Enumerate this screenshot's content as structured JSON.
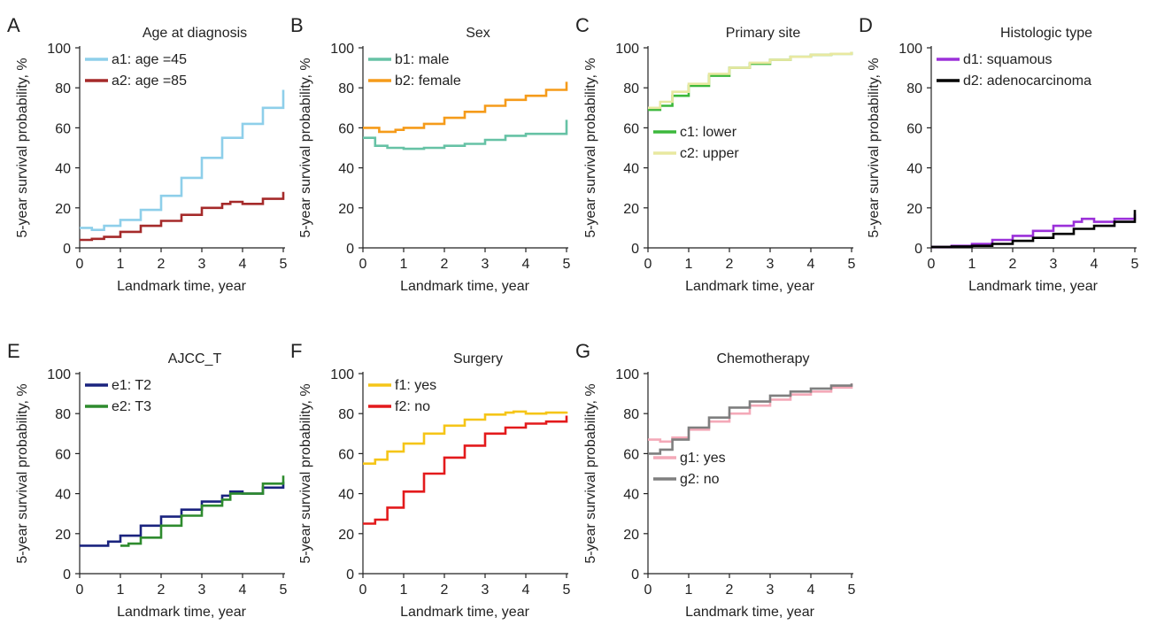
{
  "chart_data": [
    {
      "type": "line",
      "panel": "A",
      "title": "Age at diagnosis",
      "xlabel": "Landmark time, year",
      "ylabel": "5-year survival probability, %",
      "xlim": [
        0,
        5
      ],
      "ylim": [
        0,
        100
      ],
      "xticks": [
        "0",
        "1",
        "2",
        "3",
        "4",
        "5"
      ],
      "yticks": [
        "0",
        "20",
        "40",
        "60",
        "80",
        "100"
      ],
      "legend_position": "top-left",
      "series": [
        {
          "name": "a1: age =45",
          "color": "#8ecfea",
          "x": [
            0,
            0.3,
            0.6,
            1.0,
            1.5,
            2.0,
            2.5,
            3.0,
            3.5,
            4.0,
            4.5,
            5.0
          ],
          "y": [
            10,
            9,
            11,
            14,
            19,
            26,
            35,
            45,
            55,
            62,
            70,
            79
          ]
        },
        {
          "name": "a2: age =85",
          "color": "#a52a2a",
          "x": [
            0,
            0.3,
            0.6,
            1.0,
            1.5,
            2.0,
            2.5,
            3.0,
            3.5,
            3.7,
            4.0,
            4.5,
            5.0
          ],
          "y": [
            4,
            4.5,
            5.5,
            8,
            11,
            13.5,
            16.5,
            20,
            22,
            23,
            22,
            24.5,
            28
          ]
        }
      ]
    },
    {
      "type": "line",
      "panel": "B",
      "title": "Sex",
      "xlabel": "Landmark time, year",
      "ylabel": "5-year survival probability, %",
      "xlim": [
        0,
        5
      ],
      "ylim": [
        0,
        100
      ],
      "xticks": [
        "0",
        "1",
        "2",
        "3",
        "4",
        "5"
      ],
      "yticks": [
        "0",
        "20",
        "40",
        "60",
        "80",
        "100"
      ],
      "legend_position": "top-left",
      "series": [
        {
          "name": "b1: male",
          "color": "#66c2a5",
          "x": [
            0,
            0.3,
            0.6,
            1.0,
            1.5,
            2.0,
            2.5,
            3.0,
            3.5,
            4.0,
            4.5,
            5.0
          ],
          "y": [
            55,
            51,
            50,
            49.5,
            50,
            51,
            52,
            54,
            56,
            57,
            57,
            64
          ]
        },
        {
          "name": "b2: female",
          "color": "#f59b1a",
          "x": [
            0,
            0.4,
            0.8,
            1.0,
            1.5,
            2.0,
            2.5,
            3.0,
            3.5,
            4.0,
            4.5,
            5.0
          ],
          "y": [
            60,
            58,
            59,
            60,
            62,
            65,
            68,
            71,
            74,
            76,
            79,
            83
          ]
        }
      ]
    },
    {
      "type": "line",
      "panel": "C",
      "title": "Primary site",
      "xlabel": "Landmark time, year",
      "ylabel": "5-year survival probability, %",
      "xlim": [
        0,
        5
      ],
      "ylim": [
        0,
        100
      ],
      "xticks": [
        "0",
        "1",
        "2",
        "3",
        "4",
        "5"
      ],
      "yticks": [
        "0",
        "20",
        "40",
        "60",
        "80",
        "100"
      ],
      "legend_position": "center-left",
      "series": [
        {
          "name": "c1: lower",
          "color": "#3cb83c",
          "x": [
            0,
            0.3,
            0.6,
            1.0,
            1.5,
            2.0,
            2.5,
            3.0,
            3.5,
            4.0,
            4.5,
            5.0
          ],
          "y": [
            69,
            71,
            76,
            81,
            86,
            90,
            92,
            94,
            95.5,
            96.5,
            97,
            98
          ]
        },
        {
          "name": "c2: upper",
          "color": "#e8e8a0",
          "x": [
            0,
            0.3,
            0.6,
            1.0,
            1.5,
            2.0,
            2.5,
            3.0,
            3.5,
            4.0,
            4.5,
            5.0
          ],
          "y": [
            70,
            73,
            78,
            82,
            87,
            90,
            92.5,
            94,
            95.5,
            96.5,
            97,
            98
          ]
        }
      ]
    },
    {
      "type": "line",
      "panel": "D",
      "title": "Histologic type",
      "xlabel": "Landmark time, year",
      "ylabel": "5-year survival probability, %",
      "xlim": [
        0,
        5
      ],
      "ylim": [
        0,
        100
      ],
      "xticks": [
        "0",
        "1",
        "2",
        "3",
        "4",
        "5"
      ],
      "yticks": [
        "0",
        "20",
        "40",
        "60",
        "80",
        "100"
      ],
      "legend_position": "top-left",
      "series": [
        {
          "name": "d1: squamous",
          "color": "#9b30d9",
          "x": [
            0,
            0.5,
            1.0,
            1.5,
            2.0,
            2.5,
            3.0,
            3.5,
            3.7,
            4.0,
            4.5,
            5.0
          ],
          "y": [
            0.5,
            1,
            2,
            4,
            6,
            8.5,
            11,
            13,
            14.5,
            13,
            14.5,
            17
          ]
        },
        {
          "name": "d2: adenocarcinoma",
          "color": "#000000",
          "x": [
            0,
            0.5,
            1.0,
            1.5,
            2.0,
            2.5,
            3.0,
            3.5,
            4.0,
            4.5,
            5.0
          ],
          "y": [
            0.5,
            0.7,
            1,
            2,
            3.5,
            5,
            7,
            9.5,
            11,
            13,
            19
          ]
        }
      ]
    },
    {
      "type": "line",
      "panel": "E",
      "title": "AJCC_T",
      "xlabel": "Landmark time, year",
      "ylabel": "5-year survival probability, %",
      "xlim": [
        0,
        5
      ],
      "ylim": [
        0,
        100
      ],
      "xticks": [
        "0",
        "1",
        "2",
        "3",
        "4",
        "5"
      ],
      "yticks": [
        "0",
        "20",
        "40",
        "60",
        "80",
        "100"
      ],
      "legend_position": "top-left",
      "series": [
        {
          "name": "e1: T2",
          "color": "#1a237e",
          "x": [
            0,
            0.4,
            0.7,
            1.0,
            1.5,
            2.0,
            2.5,
            3.0,
            3.5,
            3.7,
            4.0,
            4.5,
            5.0
          ],
          "y": [
            14,
            14,
            16,
            19,
            24,
            28.5,
            32,
            36,
            39,
            41,
            40,
            43,
            46
          ]
        },
        {
          "name": "e2: T3",
          "color": "#2e8b2e",
          "x": [
            1.0,
            1.2,
            1.5,
            2.0,
            2.5,
            3.0,
            3.5,
            3.7,
            4.0,
            4.5,
            5.0
          ],
          "y": [
            14,
            15,
            18,
            24,
            29,
            34,
            37,
            40,
            40,
            45,
            49
          ]
        }
      ]
    },
    {
      "type": "line",
      "panel": "F",
      "title": "Surgery",
      "xlabel": "Landmark time, year",
      "ylabel": "5-year survival probability, %",
      "xlim": [
        0,
        5
      ],
      "ylim": [
        0,
        100
      ],
      "xticks": [
        "0",
        "1",
        "2",
        "3",
        "4",
        "5"
      ],
      "yticks": [
        "0",
        "20",
        "40",
        "60",
        "80",
        "100"
      ],
      "legend_position": "top-left",
      "series": [
        {
          "name": "f1: yes",
          "color": "#f5c518",
          "x": [
            0,
            0.3,
            0.6,
            1.0,
            1.5,
            2.0,
            2.5,
            3.0,
            3.5,
            3.7,
            4.0,
            4.5,
            5.0
          ],
          "y": [
            55,
            57,
            61,
            65,
            70,
            74,
            77,
            79.5,
            80.5,
            81,
            80,
            80.5,
            81
          ]
        },
        {
          "name": "f2: no",
          "color": "#e31a1c",
          "x": [
            0,
            0.3,
            0.6,
            1.0,
            1.5,
            2.0,
            2.5,
            3.0,
            3.5,
            4.0,
            4.5,
            5.0
          ],
          "y": [
            25,
            27,
            33,
            41,
            50,
            58,
            64,
            70,
            73,
            75,
            76,
            79
          ]
        }
      ]
    },
    {
      "type": "line",
      "panel": "G",
      "title": "Chemotherapy",
      "xlabel": "Landmark time, year",
      "ylabel": "5-year survival probability, %",
      "xlim": [
        0,
        5
      ],
      "ylim": [
        0,
        100
      ],
      "xticks": [
        "0",
        "1",
        "2",
        "3",
        "4",
        "5"
      ],
      "yticks": [
        "0",
        "20",
        "40",
        "60",
        "80",
        "100"
      ],
      "legend_position": "center-left",
      "series": [
        {
          "name": "g1: yes",
          "color": "#f4a9b8",
          "x": [
            0,
            0.3,
            0.6,
            1.0,
            1.5,
            2.0,
            2.5,
            3.0,
            3.5,
            4.0,
            4.5,
            5.0
          ],
          "y": [
            67,
            66,
            68,
            72,
            76,
            80,
            84,
            87,
            89.5,
            91,
            93,
            95
          ]
        },
        {
          "name": "g2: no",
          "color": "#7f7f7f",
          "x": [
            0,
            0.3,
            0.6,
            1.0,
            1.5,
            2.0,
            2.5,
            3.0,
            3.5,
            4.0,
            4.5,
            5.0
          ],
          "y": [
            60,
            62,
            67,
            73,
            78,
            83,
            86,
            89,
            91,
            92.5,
            94,
            95
          ]
        }
      ]
    }
  ]
}
